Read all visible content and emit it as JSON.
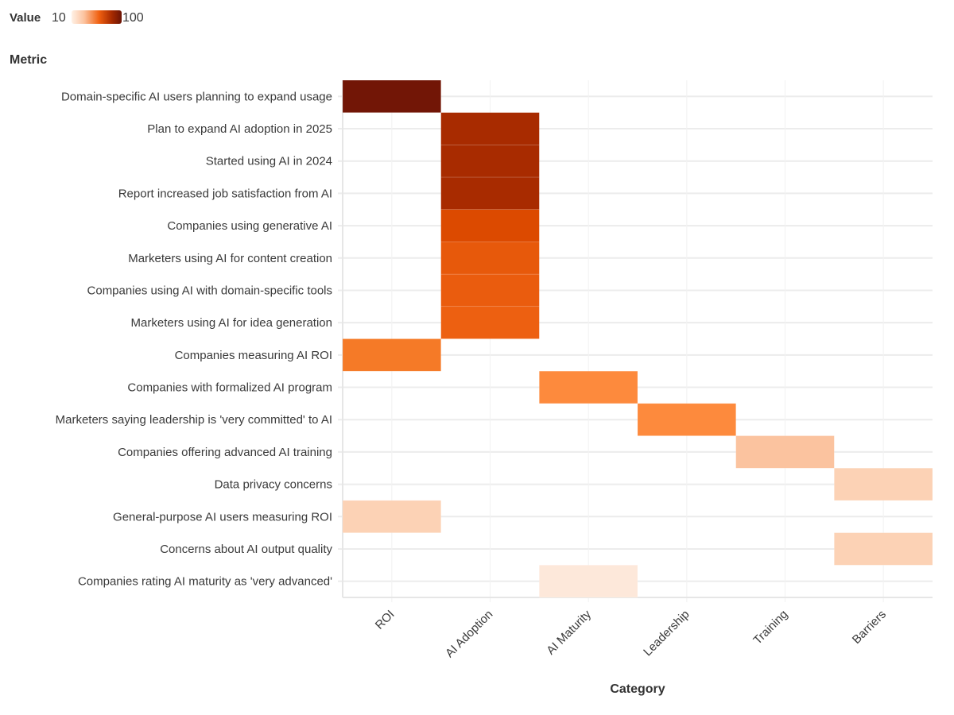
{
  "chart_data": {
    "type": "heatmap",
    "title": "",
    "xlabel": "Category",
    "ylabel": "Metric",
    "legend": {
      "title": "Value",
      "min": 10,
      "max": 100,
      "placement": "top-left"
    },
    "categories": [
      "ROI",
      "AI Adoption",
      "AI Maturity",
      "Leadership",
      "Training",
      "Barriers"
    ],
    "metrics": [
      "Domain-specific AI users planning to expand usage",
      "Plan to expand AI adoption in 2025",
      "Started using AI in 2024",
      "Report increased job satisfaction from AI",
      "Companies using generative AI",
      "Marketers using AI for content creation",
      "Companies using AI with domain-specific tools",
      "Marketers using AI for idea generation",
      "Companies measuring AI ROI",
      "Companies with formalized AI program",
      "Marketers saying leadership is 'very committed' to AI",
      "Companies offering advanced AI training",
      "Data privacy concerns",
      "General-purpose AI users measuring ROI",
      "Concerns about AI output quality",
      "Companies rating AI maturity as 'very advanced'"
    ],
    "cells": [
      {
        "metric": 0,
        "category": "ROI",
        "value": 95
      },
      {
        "metric": 1,
        "category": "AI Adoption",
        "value": 86
      },
      {
        "metric": 2,
        "category": "AI Adoption",
        "value": 86
      },
      {
        "metric": 3,
        "category": "AI Adoption",
        "value": 86
      },
      {
        "metric": 4,
        "category": "AI Adoption",
        "value": 75
      },
      {
        "metric": 5,
        "category": "AI Adoption",
        "value": 71
      },
      {
        "metric": 6,
        "category": "AI Adoption",
        "value": 70
      },
      {
        "metric": 7,
        "category": "AI Adoption",
        "value": 69
      },
      {
        "metric": 8,
        "category": "ROI",
        "value": 63
      },
      {
        "metric": 9,
        "category": "AI Maturity",
        "value": 60
      },
      {
        "metric": 10,
        "category": "Leadership",
        "value": 60
      },
      {
        "metric": 11,
        "category": "Training",
        "value": 30
      },
      {
        "metric": 12,
        "category": "Barriers",
        "value": 25
      },
      {
        "metric": 13,
        "category": "ROI",
        "value": 25
      },
      {
        "metric": 14,
        "category": "Barriers",
        "value": 25
      },
      {
        "metric": 15,
        "category": "AI Maturity",
        "value": 15
      }
    ]
  }
}
